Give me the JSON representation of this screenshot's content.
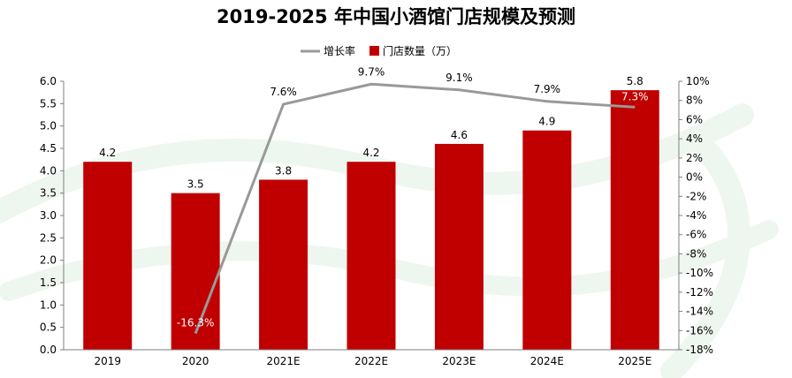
{
  "chart_data": {
    "type": "bar",
    "title": "2019-2025 年中国小酒馆门店规模及预测",
    "categories": [
      "2019",
      "2020",
      "2021E",
      "2022E",
      "2023E",
      "2024E",
      "2025E"
    ],
    "series": [
      {
        "name": "门店数量（万）",
        "type": "bar",
        "axis": "left",
        "color": "#c00000",
        "values": [
          4.2,
          3.5,
          3.8,
          4.2,
          4.6,
          4.9,
          5.8
        ],
        "labels": [
          "4.2",
          "3.5",
          "3.8",
          "4.2",
          "4.6",
          "4.9",
          "5.8"
        ]
      },
      {
        "name": "增长率",
        "type": "line",
        "axis": "right",
        "color": "#999999",
        "values": [
          null,
          -16.3,
          7.6,
          9.7,
          9.1,
          7.9,
          7.3
        ],
        "labels": [
          "",
          "-16.3%",
          "7.6%",
          "9.7%",
          "9.1%",
          "7.9%",
          "7.3%"
        ]
      }
    ],
    "yleft": {
      "lim": [
        0,
        6
      ],
      "ticks": [
        "0.0",
        "0.5",
        "1.0",
        "1.5",
        "2.0",
        "2.5",
        "3.0",
        "3.5",
        "4.0",
        "4.5",
        "5.0",
        "5.5",
        "6.0"
      ]
    },
    "yright": {
      "lim": [
        -18,
        10
      ],
      "ticks": [
        "-18%",
        "-16%",
        "-14%",
        "-12%",
        "-10%",
        "-8%",
        "-6%",
        "-4%",
        "-2%",
        "0%",
        "2%",
        "4%",
        "6%",
        "8%",
        "10%"
      ]
    },
    "legend": {
      "position": "top-right",
      "line_label": "增长率",
      "bar_label": "门店数量（万）"
    },
    "grid": false
  }
}
